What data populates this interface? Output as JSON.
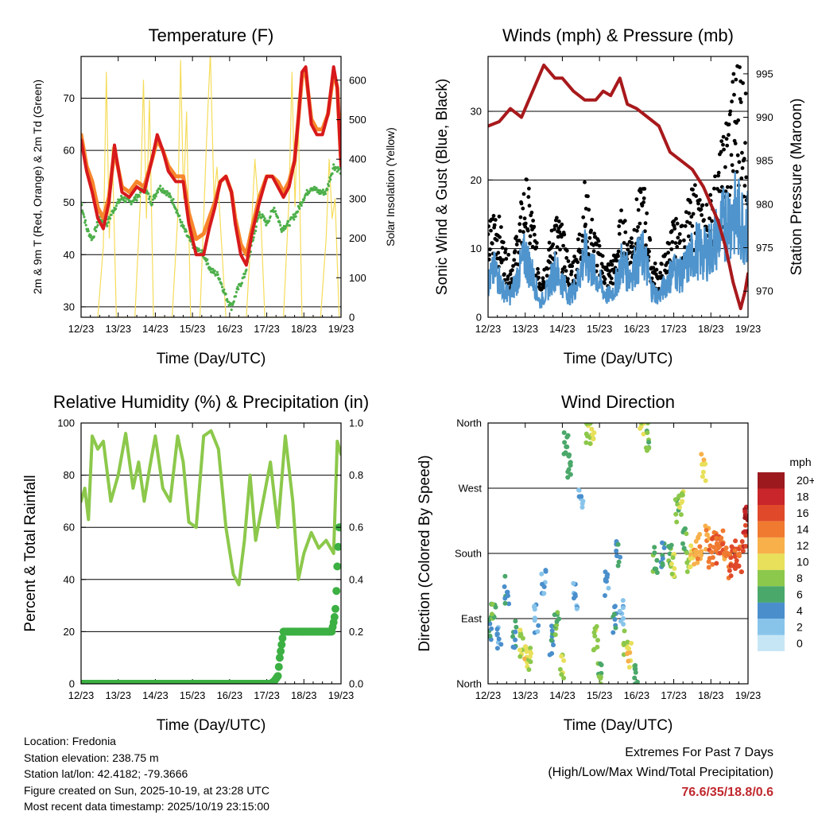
{
  "x_axis": {
    "label": "Time (Day/UTC)",
    "ticks": [
      "12/23",
      "13/23",
      "14/23",
      "15/23",
      "16/23",
      "17/23",
      "18/23",
      "19/23"
    ]
  },
  "station_info": {
    "location": "Location: Fredonia",
    "elevation": "Station elevation: 238.75 m",
    "latlon": "Station lat/lon: 42.4182; -79.3666",
    "created": "Figure created on Sun, 2025-10-19, at 23:28 UTC",
    "recent": "Most recent data timestamp: 2025/10/19 23:15:00"
  },
  "extremes": {
    "title": "Extremes For Past 7 Days",
    "subtitle": "(High/Low/Max Wind/Total Precipitation)",
    "values": "76.6/35/18.8/0.6",
    "color": "#c0282e"
  },
  "colors": {
    "temp_2m": "#d7191c",
    "temp_9m": "#f7862c",
    "dewpoint": "#4daf4a",
    "solar": "#f5dc5a",
    "gust": "#000000",
    "wind": "#4f94cd",
    "pressure": "#a8191c",
    "rh": "#8cc84b",
    "precip": "#3cb043"
  },
  "chart_data": [
    {
      "type": "line",
      "title": "Temperature (F)",
      "xlabel": "Time (Day/UTC)",
      "ylabel": "2m & 9m T (Red, Orange) & 2m Td (Green)",
      "ylabel_right": "Solar Insolation (Yellow)",
      "xlim": [
        0,
        7
      ],
      "ylim": [
        28,
        78
      ],
      "ylim_right": [
        0,
        660
      ],
      "yticks": [
        30,
        40,
        50,
        60,
        70
      ],
      "yticks_right": [
        0,
        100,
        200,
        300,
        400,
        500,
        600
      ],
      "grid": true,
      "series": [
        {
          "name": "2m T",
          "color": "#d7191c",
          "x": [
            0,
            0.15,
            0.3,
            0.45,
            0.6,
            0.75,
            0.9,
            1.1,
            1.3,
            1.5,
            1.7,
            1.9,
            2.05,
            2.2,
            2.35,
            2.55,
            2.75,
            2.9,
            3.1,
            3.3,
            3.45,
            3.6,
            3.75,
            3.9,
            4.05,
            4.15,
            4.3,
            4.45,
            4.6,
            4.8,
            5.0,
            5.15,
            5.3,
            5.45,
            5.6,
            5.75,
            5.85,
            5.95,
            6.05,
            6.2,
            6.35,
            6.5,
            6.65,
            6.8,
            6.9,
            7.0
          ],
          "y": [
            62,
            56,
            52,
            47,
            45,
            50,
            61,
            52,
            51,
            53,
            52,
            58,
            63,
            60,
            56,
            54,
            54,
            46,
            40,
            40,
            45,
            49,
            54,
            55,
            52,
            46,
            40,
            38,
            44,
            50,
            55,
            55,
            53,
            51,
            53,
            58,
            66,
            75,
            76,
            65,
            63,
            63,
            67,
            76,
            72,
            57
          ]
        },
        {
          "name": "9m T",
          "color": "#f7862c",
          "x": [
            0,
            0.15,
            0.3,
            0.45,
            0.6,
            0.75,
            0.9,
            1.1,
            1.3,
            1.5,
            1.7,
            1.9,
            2.05,
            2.2,
            2.35,
            2.55,
            2.75,
            2.9,
            3.1,
            3.3,
            3.45,
            3.6,
            3.75,
            3.9,
            4.05,
            4.15,
            4.3,
            4.45,
            4.6,
            4.8,
            5.0,
            5.15,
            5.3,
            5.45,
            5.6,
            5.75,
            5.85,
            5.95,
            6.05,
            6.2,
            6.35,
            6.5,
            6.65,
            6.8,
            6.9,
            7.0
          ],
          "y": [
            63,
            57,
            54,
            49,
            47,
            51,
            60,
            53,
            52,
            54,
            53,
            58,
            62,
            60,
            57,
            55,
            55,
            48,
            43,
            44,
            47,
            50,
            54,
            55,
            52,
            47,
            42,
            40,
            45,
            51,
            55,
            55,
            54,
            52,
            54,
            58,
            66,
            74,
            75,
            66,
            64,
            64,
            67,
            75,
            72,
            58
          ]
        },
        {
          "name": "2m Td",
          "color": "#4daf4a",
          "x": [
            0,
            0.15,
            0.3,
            0.5,
            0.7,
            0.9,
            1.1,
            1.3,
            1.5,
            1.7,
            1.9,
            2.1,
            2.3,
            2.5,
            2.7,
            2.9,
            3.1,
            3.3,
            3.5,
            3.7,
            3.9,
            4.05,
            4.2,
            4.4,
            4.6,
            4.8,
            5.0,
            5.2,
            5.4,
            5.6,
            5.8,
            6.0,
            6.2,
            6.4,
            6.6,
            6.8,
            7.0
          ],
          "y": [
            50,
            45,
            43,
            47,
            46,
            49,
            51,
            50,
            51,
            53,
            50,
            53,
            52,
            50,
            46,
            43,
            41,
            40,
            37,
            36,
            32,
            30,
            33,
            36,
            42,
            48,
            46,
            49,
            45,
            46,
            48,
            51,
            53,
            52,
            52,
            57,
            56
          ]
        },
        {
          "name": "Solar Insolation",
          "color": "#f5dc5a",
          "axis": "right",
          "x": [
            0.45,
            0.6,
            0.68,
            0.76,
            0.84,
            0.95,
            1.45,
            1.6,
            1.68,
            1.76,
            1.84,
            1.95,
            2.45,
            2.6,
            2.68,
            2.76,
            2.84,
            2.95,
            3.2,
            3.38,
            3.48,
            3.58,
            3.66,
            3.9,
            4.45,
            4.6,
            4.68,
            4.76,
            4.84,
            4.95,
            5.45,
            5.6,
            5.68,
            5.76,
            5.84,
            5.95,
            6.45,
            6.6,
            6.68,
            6.76,
            6.84,
            6.95
          ],
          "y": [
            0,
            180,
            620,
            200,
            430,
            0,
            0,
            300,
            600,
            250,
            550,
            0,
            0,
            250,
            650,
            300,
            520,
            0,
            0,
            450,
            670,
            300,
            380,
            0,
            0,
            250,
            400,
            300,
            250,
            0,
            0,
            300,
            620,
            280,
            550,
            0,
            0,
            200,
            400,
            250,
            300,
            0
          ]
        }
      ]
    },
    {
      "type": "scatter",
      "title": "Winds (mph) & Pressure (mb)",
      "xlabel": "Time (Day/UTC)",
      "ylabel": "Sonic Wind & Gust (Blue, Black)",
      "ylabel_right": "Station Pressure (Maroon)",
      "xlim": [
        0,
        7
      ],
      "ylim": [
        0,
        38
      ],
      "ylim_right": [
        967,
        997
      ],
      "yticks": [
        0,
        10,
        20,
        30
      ],
      "yticks_right": [
        970,
        975,
        980,
        985,
        990,
        995
      ],
      "grid": true,
      "series": [
        {
          "name": "Gust",
          "color": "#000000",
          "x": [
            0,
            0.2,
            0.4,
            0.6,
            0.8,
            1.0,
            1.2,
            1.4,
            1.6,
            1.8,
            2.0,
            2.2,
            2.4,
            2.6,
            2.8,
            3.0,
            3.2,
            3.4,
            3.6,
            3.8,
            4.0,
            4.2,
            4.4,
            4.6,
            4.8,
            5.0,
            5.2,
            5.4,
            5.6,
            5.8,
            6.0,
            6.2,
            6.4,
            6.6,
            6.8,
            7.0
          ],
          "y": [
            10,
            13,
            9,
            6,
            10,
            16,
            12,
            5,
            7,
            12,
            10,
            6,
            8,
            15,
            11,
            8,
            6,
            7,
            12,
            9,
            13,
            15,
            7,
            5,
            8,
            11,
            10,
            13,
            15,
            12,
            14,
            17,
            22,
            27,
            30,
            22
          ]
        },
        {
          "name": "Sonic Wind",
          "color": "#4f94cd",
          "x": [
            0,
            0.2,
            0.4,
            0.6,
            0.8,
            1.0,
            1.2,
            1.4,
            1.6,
            1.8,
            2.0,
            2.2,
            2.4,
            2.6,
            2.8,
            3.0,
            3.2,
            3.4,
            3.6,
            3.8,
            4.0,
            4.2,
            4.4,
            4.6,
            4.8,
            5.0,
            5.2,
            5.4,
            5.6,
            5.8,
            6.0,
            6.2,
            6.4,
            6.6,
            6.8,
            7.0
          ],
          "y": [
            5,
            7,
            4,
            3,
            6,
            9,
            6,
            2,
            4,
            7,
            5,
            3,
            5,
            9,
            7,
            5,
            3,
            4,
            8,
            6,
            8,
            9,
            4,
            3,
            5,
            7,
            6,
            8,
            10,
            9,
            10,
            12,
            14,
            15,
            14,
            13
          ]
        },
        {
          "name": "Station Pressure",
          "color": "#a8191c",
          "axis": "right",
          "x": [
            0,
            0.3,
            0.6,
            0.9,
            1.2,
            1.5,
            1.8,
            2.0,
            2.3,
            2.6,
            2.9,
            3.1,
            3.3,
            3.55,
            3.75,
            4.0,
            4.3,
            4.6,
            4.9,
            5.2,
            5.5,
            5.8,
            6.0,
            6.2,
            6.4,
            6.6,
            6.8,
            6.92,
            7.0
          ],
          "y": [
            989,
            989.5,
            991,
            990,
            993,
            996,
            994.5,
            994.5,
            993,
            992,
            992,
            993,
            992.5,
            994.5,
            991.5,
            991,
            990,
            989,
            986,
            985,
            984,
            982,
            980,
            978,
            975,
            971,
            968,
            970,
            972
          ]
        }
      ]
    },
    {
      "type": "line",
      "title": "Relative Humidity (%) & Precipitation (in)",
      "xlabel": "Time (Day/UTC)",
      "ylabel": "Percent & Total Rainfall",
      "xlim": [
        0,
        7
      ],
      "ylim": [
        0,
        100
      ],
      "ylim_right": [
        0,
        1.0
      ],
      "yticks": [
        0,
        20,
        40,
        60,
        80,
        100
      ],
      "yticks_right": [
        "0.0",
        "0.2",
        "0.4",
        "0.6",
        "0.8",
        "1.0"
      ],
      "grid": true,
      "series": [
        {
          "name": "Relative Humidity",
          "color": "#8cc84b",
          "x": [
            0,
            0.1,
            0.2,
            0.3,
            0.45,
            0.6,
            0.8,
            1.0,
            1.2,
            1.4,
            1.55,
            1.7,
            1.85,
            2.0,
            2.2,
            2.4,
            2.6,
            2.75,
            2.9,
            3.1,
            3.3,
            3.5,
            3.7,
            3.9,
            4.1,
            4.25,
            4.4,
            4.55,
            4.7,
            4.9,
            5.1,
            5.3,
            5.5,
            5.7,
            5.85,
            6.0,
            6.2,
            6.4,
            6.6,
            6.8,
            6.9,
            7.0
          ],
          "y": [
            70,
            75,
            63,
            95,
            90,
            93,
            70,
            80,
            96,
            75,
            85,
            70,
            83,
            95,
            75,
            70,
            95,
            85,
            62,
            60,
            95,
            97,
            90,
            60,
            42,
            38,
            55,
            80,
            55,
            70,
            85,
            60,
            95,
            70,
            40,
            50,
            58,
            52,
            55,
            50,
            93,
            88
          ]
        },
        {
          "name": "Total Precipitation",
          "color": "#3cb043",
          "axis": "right",
          "x": [
            0,
            1,
            2,
            3,
            4,
            5,
            5.1,
            5.2,
            5.3,
            5.35,
            5.45,
            6.0,
            6.5,
            6.75,
            6.82,
            6.86,
            6.9,
            6.95,
            7.0
          ],
          "y": [
            0,
            0,
            0,
            0,
            0,
            0,
            0,
            0.01,
            0.03,
            0.1,
            0.2,
            0.2,
            0.2,
            0.2,
            0.25,
            0.3,
            0.45,
            0.6,
            0.6
          ]
        }
      ]
    },
    {
      "type": "scatter",
      "title": "Wind Direction",
      "xlabel": "Time (Day/UTC)",
      "ylabel": "Direction (Colored By Speed)",
      "xlim": [
        0,
        7
      ],
      "ylim": [
        0,
        360
      ],
      "yticks": [
        "North",
        "East",
        "South",
        "West",
        "North"
      ],
      "grid": true,
      "colorbar": {
        "title": "mph",
        "labels": [
          "0",
          "2",
          "4",
          "6",
          "8",
          "10",
          "12",
          "14",
          "16",
          "18",
          "20+"
        ],
        "colors": [
          "#c6e6f6",
          "#88c4ea",
          "#4a8fcc",
          "#4aa86a",
          "#8cc84b",
          "#e8e05a",
          "#f8b04a",
          "#f07a30",
          "#e04a2a",
          "#c8262a",
          "#9c1a1e"
        ]
      },
      "series": [
        {
          "name": "Direction",
          "x": [
            0.05,
            0.15,
            0.3,
            0.5,
            0.7,
            0.9,
            1.0,
            1.1,
            1.3,
            1.5,
            1.7,
            1.85,
            2.0,
            2.1,
            2.2,
            2.35,
            2.5,
            2.7,
            2.8,
            2.9,
            3.0,
            3.2,
            3.4,
            3.5,
            3.6,
            3.7,
            3.8,
            4.0,
            4.15,
            4.3,
            4.5,
            4.7,
            4.9,
            5.0,
            5.1,
            5.2,
            5.3,
            5.4,
            5.5,
            5.6,
            5.7,
            5.8,
            5.9,
            6.0,
            6.1,
            6.2,
            6.3,
            6.4,
            6.5,
            6.6,
            6.7,
            6.8,
            6.9,
            6.95
          ],
          "y": [
            80,
            110,
            60,
            130,
            70,
            55,
            40,
            30,
            90,
            140,
            60,
            80,
            20,
            330,
            300,
            120,
            250,
            350,
            340,
            60,
            10,
            140,
            90,
            180,
            100,
            60,
            40,
            10,
            350,
            340,
            170,
            180,
            175,
            160,
            240,
            250,
            200,
            170,
            175,
            185,
            190,
            300,
            200,
            180,
            190,
            185,
            200,
            170,
            165,
            175,
            180,
            170,
            200,
            230
          ],
          "speeds": [
            4,
            6,
            3,
            4,
            5,
            8,
            10,
            9,
            2,
            3,
            4,
            6,
            8,
            6,
            5,
            3,
            2,
            8,
            9,
            8,
            7,
            3,
            4,
            4,
            2,
            8,
            10,
            6,
            9,
            7,
            6,
            4,
            6,
            8,
            7,
            8,
            6,
            8,
            10,
            12,
            12,
            11,
            12,
            14,
            15,
            14,
            14,
            13,
            14,
            16,
            15,
            14,
            16,
            18
          ]
        }
      ]
    }
  ]
}
